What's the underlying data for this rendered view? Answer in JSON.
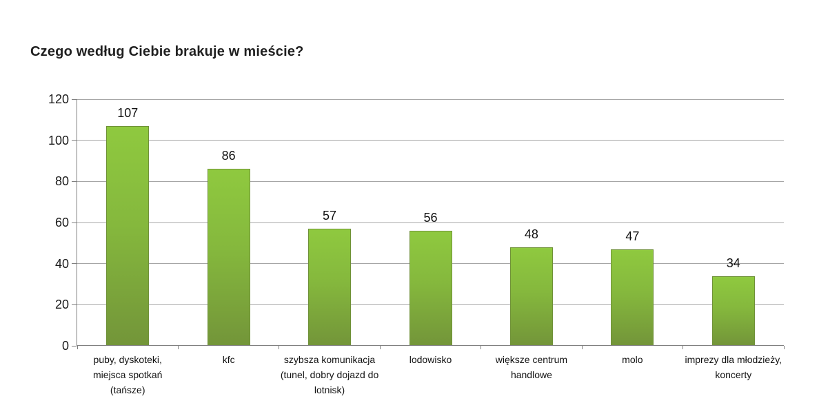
{
  "chart_data": {
    "type": "bar",
    "title": "Czego według Ciebie brakuje w mieście?",
    "categories": [
      "puby, dyskoteki,\nmiejsca spotkań\n(tańsze)",
      "kfc",
      "szybsza komunikacja\n(tunel, dobry dojazd do\nlotnisk)",
      "lodowisko",
      "większe centrum\nhandlowe",
      "molo",
      "imprezy dla młodzieży,\nkoncerty"
    ],
    "values": [
      107,
      86,
      57,
      56,
      48,
      47,
      34
    ],
    "xlabel": "",
    "ylabel": "",
    "ylim": [
      0,
      120
    ],
    "yticks": [
      0,
      20,
      40,
      60,
      80,
      100,
      120
    ],
    "grid": "horizontal",
    "legend": "none",
    "colors": {
      "bar_top": "#8fc93f",
      "bar_bottom": "#739539",
      "bar_border": "#6f9138",
      "gridline": "#a6a6a6",
      "axis": "#7f7f7f",
      "text": "#111111",
      "background": "#ffffff"
    }
  }
}
